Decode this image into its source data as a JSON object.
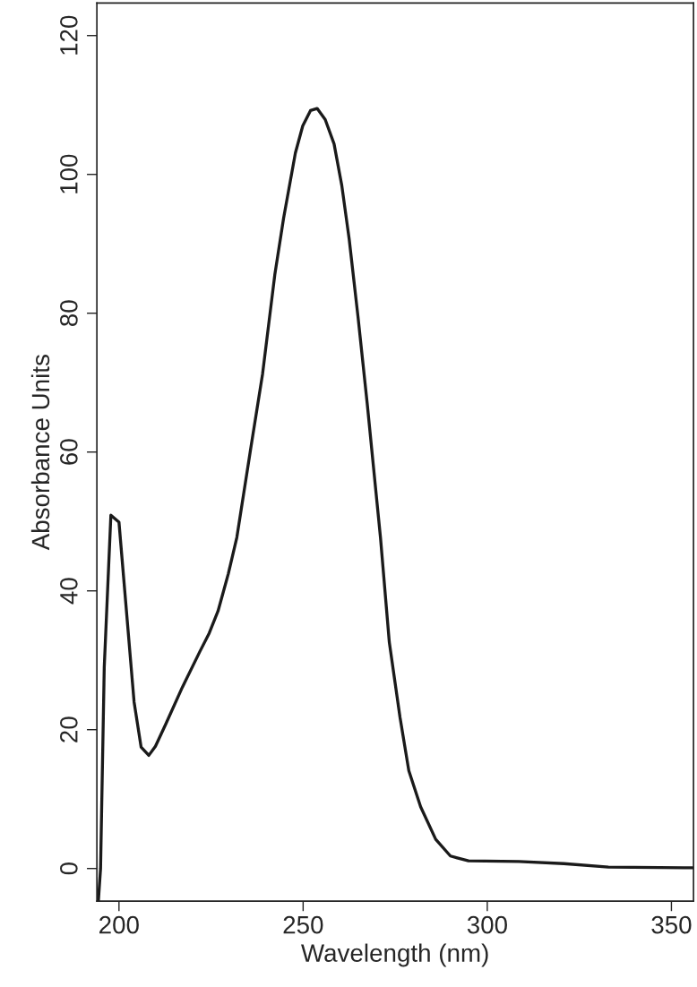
{
  "chart_data": {
    "type": "line",
    "xlabel": "Wavelength (nm)",
    "ylabel": "Absorbance Units",
    "xlim": [
      194,
      356
    ],
    "xticks": [
      200,
      250,
      300,
      350
    ],
    "ylim": [
      -4.7,
      124.7
    ],
    "yticks": [
      0,
      20,
      40,
      60,
      80,
      100,
      120
    ],
    "grid": false,
    "marker": "none",
    "line_style": "solid",
    "series": [
      {
        "color": "#1a1a1a",
        "x": [
          194.4,
          195.0,
          196.0,
          197.8,
          200.0,
          204.1,
          206.0,
          208.1,
          209.9,
          212.7,
          217.2,
          222.0,
          224.5,
          226.9,
          229.7,
          232.0,
          235.8,
          239.0,
          242.3,
          244.7,
          247.9,
          249.9,
          252.0,
          253.8,
          256.0,
          258.4,
          260.5,
          262.5,
          264.9,
          267.4,
          269.8,
          271.0,
          273.4,
          276.3,
          278.7,
          281.9,
          286.0,
          290.0,
          294.9,
          308.6,
          320.8,
          332.9,
          355.8
        ],
        "values": [
          -4.7,
          0.0,
          29.0,
          50.9,
          49.9,
          24.0,
          17.5,
          16.3,
          17.6,
          20.8,
          26.1,
          31.3,
          33.9,
          37.1,
          42.5,
          47.7,
          60.6,
          71.3,
          85.5,
          93.7,
          103.1,
          107.0,
          109.2,
          109.5,
          107.9,
          104.4,
          98.4,
          90.7,
          79.5,
          67.0,
          54.1,
          47.7,
          32.6,
          21.8,
          14.1,
          8.9,
          4.2,
          1.8,
          1.1,
          1.0,
          0.7,
          0.2,
          0.1
        ]
      }
    ]
  }
}
